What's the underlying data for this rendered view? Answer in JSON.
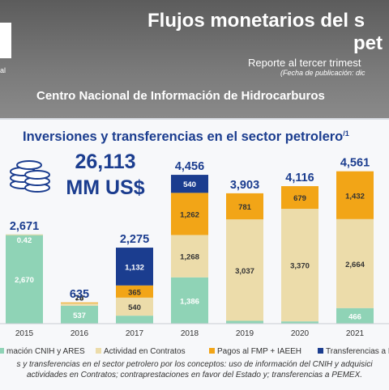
{
  "header": {
    "logo_text_1": "al",
    "title_line_1": "Flujos monetarios del s",
    "title_line_2": "pet",
    "report_line": "Reporte al tercer trimest",
    "publication_date": "(Fecha de publicación: dic",
    "organization": "Centro Nacional de Información de Hidrocarburos"
  },
  "chart_data": {
    "type": "bar",
    "stacked": true,
    "title": "Inversiones y transferencias en el sector petrolero",
    "title_superscript": "/1",
    "headline_value": "26,113",
    "headline_unit": "MM US$",
    "categories": [
      "2015",
      "2016",
      "2017",
      "2018",
      "2019",
      "2020",
      "2021"
    ],
    "totals": [
      "2,671",
      "635",
      "2,275",
      "4,456",
      "3,903",
      "4,116",
      "4,561"
    ],
    "series": [
      {
        "name": "mación CNIH y ARES",
        "color": "#8fd3b6",
        "label_color": "#ffffff",
        "values": [
          2670,
          537,
          239,
          1386,
          85,
          68,
          466
        ],
        "labels": [
          "2,670",
          "537",
          "239",
          "1,386",
          "85",
          "68",
          "466"
        ]
      },
      {
        "name": "Actividad en Contratos",
        "color": "#ecdcaa",
        "label_color": "#333333",
        "values": [
          0.42,
          78,
          540,
          1268,
          3037,
          3370,
          2664
        ],
        "labels": [
          "0.42",
          "78",
          "540",
          "1,268",
          "3,037",
          "3,370",
          "2,664"
        ]
      },
      {
        "name": "Pagos al FMP + IAEEH",
        "color": "#f2a517",
        "label_color": "#333333",
        "values": [
          0,
          20,
          365,
          1262,
          781,
          679,
          1432
        ],
        "labels": [
          "",
          "20",
          "365",
          "1,262",
          "781",
          "679",
          "1,432"
        ]
      },
      {
        "name": "Transferencias a Pe",
        "color": "#1b3d8f",
        "label_color": "#ffffff",
        "values": [
          0,
          0,
          1132,
          540,
          0,
          0,
          0
        ],
        "labels": [
          "",
          "",
          "1,132",
          "540",
          "",
          "",
          ""
        ]
      }
    ],
    "ylim": [
      0,
      4700
    ],
    "grid": false,
    "legend_position": "bottom"
  },
  "footnote": {
    "line_1": "s y transferencias en el sector petrolero por los conceptos: uso de información del CNIH y adquisici",
    "line_2": "actividades en Contratos; contraprestaciones en favor del Estado y; transferencias a PEMEX."
  },
  "colors": {
    "title_blue": "#1b3d8f",
    "total_label": "#1b3d8f"
  },
  "icons": [
    "coin-stack-icon"
  ]
}
